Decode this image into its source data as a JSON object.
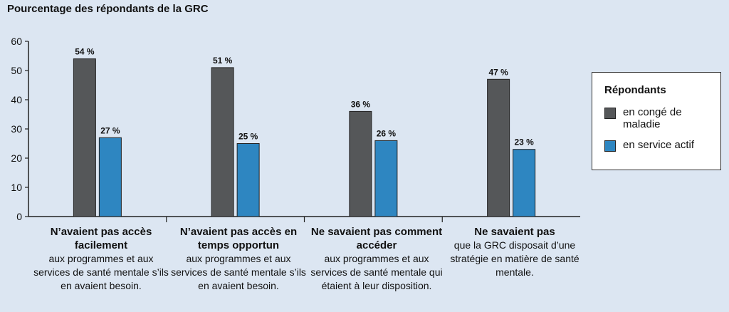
{
  "chart_data": {
    "type": "bar",
    "title": "Pourcentage des répondants de la GRC",
    "ylim": [
      0,
      60
    ],
    "yticks": [
      0,
      10,
      20,
      30,
      40,
      50,
      60
    ],
    "grid": false,
    "legend_title": "Répondants",
    "legend_position": "right",
    "categories": [
      {
        "bold": "N’avaient pas accès facilement",
        "regular": "aux programmes et aux services de santé mentale s’ils en avaient besoin."
      },
      {
        "bold": "N’avaient pas accès en temps opportun",
        "regular": "aux programmes et aux services de santé mentale s’ils en avaient besoin."
      },
      {
        "bold": "Ne savaient pas comment accéder",
        "regular": "aux programmes et aux services de santé mentale qui étaient à leur disposition."
      },
      {
        "bold": "Ne savaient pas",
        "regular": "que la GRC disposait d’une stratégie en matière de santé mentale."
      }
    ],
    "series": [
      {
        "name": "en congé de maladie",
        "color": "#555759",
        "values": [
          54,
          51,
          36,
          47
        ],
        "labels": [
          "54 %",
          "51 %",
          "36 %",
          "47 %"
        ]
      },
      {
        "name": "en service actif",
        "color": "#2e86c1",
        "values": [
          27,
          25,
          26,
          23
        ],
        "labels": [
          "27 %",
          "25 %",
          "26 %",
          "23 %"
        ]
      }
    ]
  }
}
